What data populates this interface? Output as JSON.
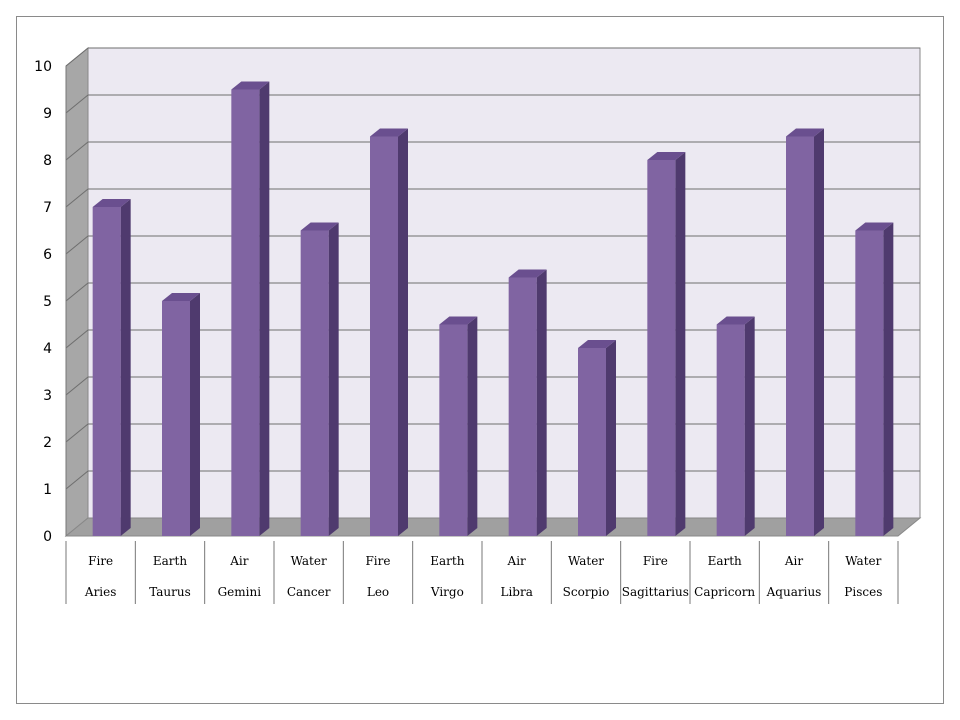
{
  "chart_data": {
    "type": "bar",
    "categories": [
      [
        "Fire",
        "Aries"
      ],
      [
        "Earth",
        "Taurus"
      ],
      [
        "Air",
        "Gemini"
      ],
      [
        "Water",
        "Cancer"
      ],
      [
        "Fire",
        "Leo"
      ],
      [
        "Earth",
        "Virgo"
      ],
      [
        "Air",
        "Libra"
      ],
      [
        "Water",
        "Scorpio"
      ],
      [
        "Fire",
        "Sagittarius"
      ],
      [
        "Earth",
        "Capricorn"
      ],
      [
        "Air",
        "Aquarius"
      ],
      [
        "Water",
        "Pisces"
      ]
    ],
    "values": [
      7,
      5,
      9.5,
      6.5,
      8.5,
      4.5,
      5.5,
      4,
      8,
      4.5,
      8.5,
      6.5
    ],
    "ylim": [
      0,
      10
    ],
    "yticks": [
      0,
      1,
      2,
      3,
      4,
      5,
      6,
      7,
      8,
      9,
      10
    ],
    "grid": true,
    "legend": "none",
    "style": "3d-column",
    "colors": {
      "bar_front": "#8064a2",
      "bar_side": "#4f3a6e",
      "bar_top": "#6a4f8f",
      "back_wall": "#ece9f2",
      "side_wall": "#a7a7a7",
      "floor": "#a0a0a0",
      "gridline": "#6e6e6e"
    }
  }
}
